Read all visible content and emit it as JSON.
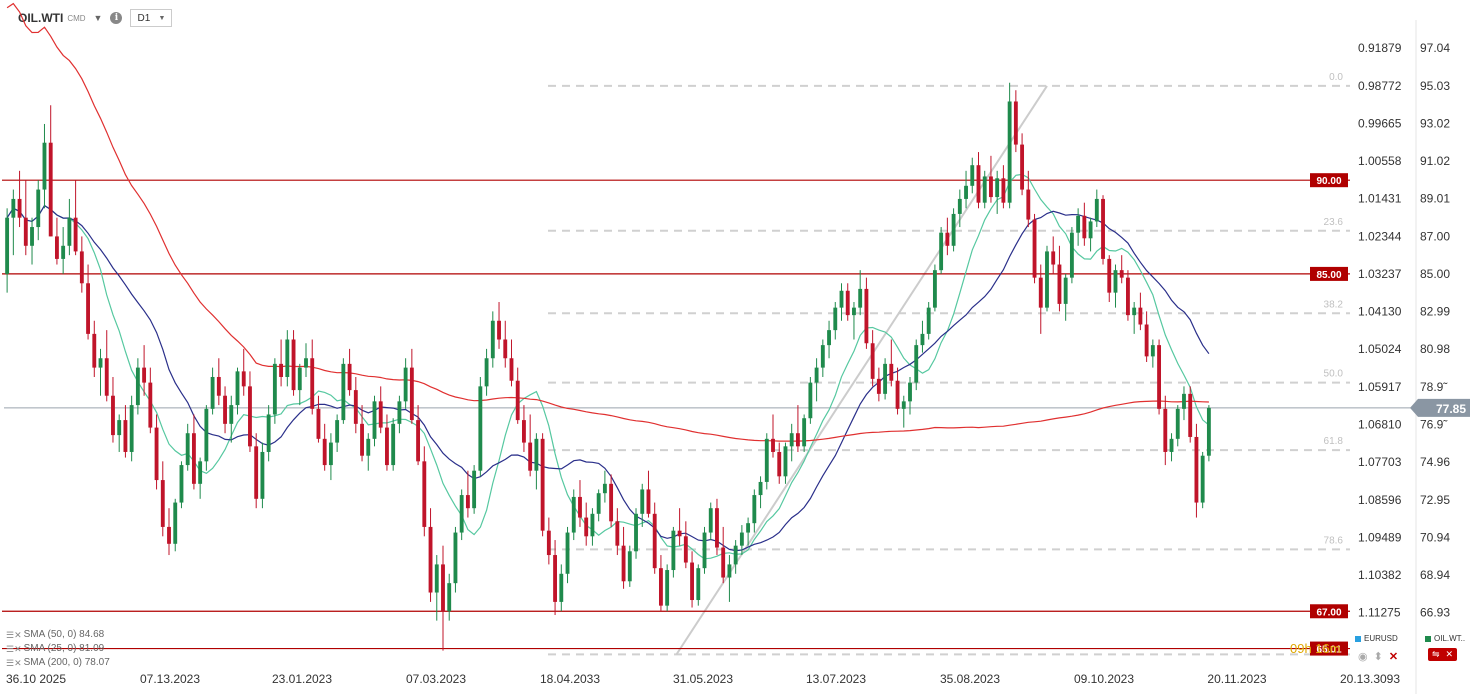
{
  "header": {
    "symbol": "OIL.WTI",
    "symbol_suffix": "CMD",
    "timeframe": "D1",
    "info_icon": "info-icon"
  },
  "chart_data": {
    "type": "candlestick",
    "instrument": "OIL.WTI",
    "timeframe": "D1",
    "x_tick_labels": [
      "36.10 2025",
      "07.13.2023",
      "23.01.2023",
      "07.03.2023",
      "18.04.2033",
      "31.05.2023",
      "13.07.2023",
      "35.08.2023",
      "09.10.2023",
      "20.11.2023",
      "20.13.3093"
    ],
    "ylim": [
      64.4,
      97.8
    ],
    "y_ticks": [
      {
        "value": 97.04,
        "label": "97.04"
      },
      {
        "value": 95.03,
        "label": "95.03"
      },
      {
        "value": 93.02,
        "label": "93.02"
      },
      {
        "value": 91.02,
        "label": "91.02"
      },
      {
        "value": 89.01,
        "label": "89.01"
      },
      {
        "value": 87.0,
        "label": "87.00"
      },
      {
        "value": 85.0,
        "label": "85.00"
      },
      {
        "value": 82.99,
        "label": "82.99"
      },
      {
        "value": 80.98,
        "label": "80.98"
      },
      {
        "value": 78.97,
        "label": "78.9̃"
      },
      {
        "value": 76.97,
        "label": "76.9̃"
      },
      {
        "value": 74.96,
        "label": "74.96"
      },
      {
        "value": 72.95,
        "label": "72.95"
      },
      {
        "value": 70.94,
        "label": "70.94"
      },
      {
        "value": 68.94,
        "label": "68.94"
      },
      {
        "value": 66.93,
        "label": "66.93"
      }
    ],
    "secondary_y_ticks": [
      {
        "value": 97.04,
        "label": "0.91879"
      },
      {
        "value": 95.03,
        "label": "0.98772"
      },
      {
        "value": 93.02,
        "label": "0.99665"
      },
      {
        "value": 91.02,
        "label": "1.00558"
      },
      {
        "value": 89.01,
        "label": "1.01431"
      },
      {
        "value": 87.0,
        "label": "1.02344"
      },
      {
        "value": 85.0,
        "label": "1.03237"
      },
      {
        "value": 82.99,
        "label": "1.04130"
      },
      {
        "value": 80.98,
        "label": "1.05024"
      },
      {
        "value": 78.97,
        "label": "1.05917"
      },
      {
        "value": 76.97,
        "label": "1.06810"
      },
      {
        "value": 74.96,
        "label": "1.07703"
      },
      {
        "value": 72.95,
        "label": "1.08596"
      },
      {
        "value": 70.94,
        "label": "1.09489"
      },
      {
        "value": 68.94,
        "label": "1.10382"
      },
      {
        "value": 66.93,
        "label": "1.11275"
      }
    ],
    "current_price": {
      "value": 77.85,
      "label": "77.85"
    },
    "horizontal_levels": [
      {
        "value": 90.0,
        "label": "90.00"
      },
      {
        "value": 85.0,
        "label": "85.00"
      },
      {
        "value": 67.0,
        "label": "67.00"
      },
      {
        "value": 65.01,
        "label": "65.01"
      }
    ],
    "fibonacci": [
      {
        "level": "0.0",
        "price": 95.03
      },
      {
        "level": "23.6",
        "price": 87.3
      },
      {
        "level": "38.2",
        "price": 82.9
      },
      {
        "level": "50.0",
        "price": 79.2
      },
      {
        "level": "61.8",
        "price": 75.6
      },
      {
        "level": "78.6",
        "price": 70.3
      },
      {
        "level": "",
        "price": 64.7
      }
    ],
    "ohlc": [
      [
        85,
        88.5,
        84,
        88
      ],
      [
        88,
        89.5,
        86,
        89
      ],
      [
        89,
        90.5,
        87.5,
        88
      ],
      [
        88,
        90,
        86,
        86.5
      ],
      [
        86.5,
        88,
        85.5,
        87.5
      ],
      [
        87.5,
        90,
        86.8,
        89.5
      ],
      [
        89.5,
        93,
        88.5,
        92
      ],
      [
        92,
        94,
        87,
        87
      ],
      [
        87,
        88,
        85.5,
        85.8
      ],
      [
        85.8,
        87.5,
        85,
        86.5
      ],
      [
        86.5,
        89,
        86,
        88
      ],
      [
        88,
        90,
        86,
        86.2
      ],
      [
        86.2,
        87,
        84,
        84.5
      ],
      [
        84.5,
        85.5,
        81.5,
        81.8
      ],
      [
        81.8,
        82.5,
        79.5,
        80
      ],
      [
        80,
        81,
        78.5,
        80.5
      ],
      [
        80.5,
        82,
        78.2,
        78.5
      ],
      [
        78.5,
        79.5,
        76,
        76.4
      ],
      [
        76.4,
        77.5,
        75.5,
        77.2
      ],
      [
        77.2,
        78,
        75.2,
        75.5
      ],
      [
        75.5,
        78.5,
        75,
        78
      ],
      [
        78,
        80.5,
        77.5,
        80
      ],
      [
        80,
        81.2,
        78.5,
        79.2
      ],
      [
        79.2,
        80,
        76.5,
        76.8
      ],
      [
        76.8,
        77.5,
        73.5,
        74
      ],
      [
        74,
        75,
        71,
        71.5
      ],
      [
        71.5,
        72.5,
        70,
        70.6
      ],
      [
        70.6,
        73,
        70.2,
        72.8
      ],
      [
        72.8,
        75,
        72.5,
        74.8
      ],
      [
        74.8,
        77,
        74.5,
        76.5
      ],
      [
        76.5,
        77.5,
        73.5,
        73.8
      ],
      [
        73.8,
        75.2,
        73,
        75
      ],
      [
        75,
        78,
        74.5,
        77.8
      ],
      [
        77.8,
        80,
        77.5,
        79.5
      ],
      [
        79.5,
        80.5,
        78,
        78.5
      ],
      [
        78.5,
        79,
        76.5,
        77
      ],
      [
        77,
        78.5,
        76,
        78
      ],
      [
        78,
        80,
        77.5,
        79.8
      ],
      [
        79.8,
        81,
        78.5,
        79
      ],
      [
        79,
        79.8,
        75.5,
        75.8
      ],
      [
        75.8,
        76.5,
        72.5,
        73
      ],
      [
        73,
        76,
        72.5,
        75.5
      ],
      [
        75.5,
        78,
        75,
        77.5
      ],
      [
        77.5,
        80.5,
        77,
        80.2
      ],
      [
        80.2,
        81.5,
        79,
        79.5
      ],
      [
        79.5,
        82,
        79,
        81.5
      ],
      [
        81.5,
        82,
        78.5,
        78.8
      ],
      [
        78.8,
        80.2,
        78,
        80
      ],
      [
        80,
        81.3,
        79.5,
        80.5
      ],
      [
        80.5,
        81.5,
        77.5,
        77.8
      ],
      [
        77.8,
        78.5,
        76,
        76.2
      ],
      [
        76.2,
        77,
        74.5,
        74.8
      ],
      [
        74.8,
        76.5,
        74,
        76
      ],
      [
        76,
        77.5,
        75.5,
        77.2
      ],
      [
        77.2,
        80.5,
        77,
        80.2
      ],
      [
        80.2,
        81,
        78.5,
        78.8
      ],
      [
        78.8,
        79.5,
        76.5,
        77
      ],
      [
        77,
        78,
        75,
        75.3
      ],
      [
        75.3,
        76.5,
        74.5,
        76.2
      ],
      [
        76.2,
        78.5,
        75.8,
        78.2
      ],
      [
        78.2,
        79,
        76.5,
        76.8
      ],
      [
        76.8,
        77.5,
        74.5,
        74.8
      ],
      [
        74.8,
        77.3,
        74.5,
        77
      ],
      [
        77,
        78.5,
        76.5,
        78.2
      ],
      [
        78.2,
        80.5,
        77.8,
        80
      ],
      [
        80,
        81,
        77,
        77.2
      ],
      [
        77.2,
        78,
        74.8,
        75
      ],
      [
        75,
        75.8,
        71,
        71.5
      ],
      [
        71.5,
        72.5,
        67.5,
        68
      ],
      [
        68,
        70,
        66.5,
        69.5
      ],
      [
        69.5,
        70.5,
        64.9,
        67
      ],
      [
        67,
        69,
        66.5,
        68.5
      ],
      [
        68.5,
        71.5,
        68,
        71.2
      ],
      [
        71.2,
        73.5,
        70.8,
        73.2
      ],
      [
        73.2,
        74.5,
        72,
        72.5
      ],
      [
        72.5,
        74.8,
        72.2,
        74.5
      ],
      [
        74.5,
        79.5,
        74.2,
        79
      ],
      [
        79,
        81,
        78.5,
        80.5
      ],
      [
        80.5,
        83,
        80,
        82.5
      ],
      [
        82.5,
        83.5,
        81,
        81.5
      ],
      [
        81.5,
        82.5,
        80,
        80.5
      ],
      [
        80.5,
        81.5,
        79,
        79.3
      ],
      [
        79.3,
        80,
        77,
        77.2
      ],
      [
        77.2,
        78,
        75.5,
        76
      ],
      [
        76,
        77.5,
        74.2,
        74.5
      ],
      [
        74.5,
        76.5,
        73.5,
        76.2
      ],
      [
        76.2,
        76.5,
        71,
        71.3
      ],
      [
        71.3,
        72,
        69.5,
        70
      ],
      [
        70,
        70.8,
        66.8,
        67.5
      ],
      [
        67.5,
        69.5,
        67,
        69
      ],
      [
        69,
        71.5,
        68.5,
        71.2
      ],
      [
        71.2,
        73.5,
        70.8,
        73.1
      ],
      [
        73.1,
        74,
        71.5,
        72
      ],
      [
        72,
        72.8,
        70.5,
        71
      ],
      [
        71,
        72.5,
        70.5,
        72.2
      ],
      [
        72.2,
        73.5,
        71.8,
        73.3
      ],
      [
        73.3,
        74.5,
        72.8,
        73.8
      ],
      [
        73.8,
        74.3,
        71.5,
        71.8
      ],
      [
        71.8,
        72.5,
        70,
        70.5
      ],
      [
        70.5,
        71.5,
        68.2,
        68.6
      ],
      [
        68.6,
        70.5,
        68.3,
        70.2
      ],
      [
        70.2,
        72.5,
        69.8,
        72.2
      ],
      [
        72.2,
        73.8,
        71.5,
        73.5
      ],
      [
        73.5,
        74.5,
        72,
        72.2
      ],
      [
        72.2,
        72.8,
        69,
        69.3
      ],
      [
        69.3,
        70,
        67,
        67.3
      ],
      [
        67.3,
        69.5,
        67,
        69.2
      ],
      [
        69.2,
        71.5,
        68.8,
        71.3
      ],
      [
        71.3,
        72.5,
        70.5,
        71
      ],
      [
        71,
        71.8,
        69.3,
        69.6
      ],
      [
        69.6,
        70.2,
        67.2,
        67.6
      ],
      [
        67.6,
        69.5,
        67.3,
        69.3
      ],
      [
        69.3,
        71.5,
        69,
        71.2
      ],
      [
        71.2,
        72.8,
        70.8,
        72.5
      ],
      [
        72.5,
        73,
        70,
        70.4
      ],
      [
        70.4,
        71.5,
        68.5,
        68.8
      ],
      [
        68.8,
        70,
        67.5,
        69.5
      ],
      [
        69.5,
        70.8,
        69,
        70.5
      ],
      [
        70.5,
        71.6,
        70,
        71.2
      ],
      [
        71.2,
        72,
        70.5,
        71.7
      ],
      [
        71.7,
        73.5,
        71.2,
        73.2
      ],
      [
        73.2,
        74.2,
        72.5,
        73.9
      ],
      [
        73.9,
        76.5,
        73.5,
        76.2
      ],
      [
        76.2,
        77.5,
        75.2,
        75.5
      ],
      [
        75.5,
        76,
        73.8,
        74.2
      ],
      [
        74.2,
        76,
        73.8,
        75.8
      ],
      [
        75.8,
        77,
        75,
        76.5
      ],
      [
        76.5,
        78,
        75.5,
        75.8
      ],
      [
        75.8,
        77.5,
        75.5,
        77.3
      ],
      [
        77.3,
        79.5,
        77,
        79.2
      ],
      [
        79.2,
        80.5,
        78.2,
        80
      ],
      [
        80,
        81.5,
        79.5,
        81.2
      ],
      [
        81.2,
        82.5,
        80.5,
        82
      ],
      [
        82,
        83.5,
        81.5,
        83.2
      ],
      [
        83.2,
        84.5,
        82.5,
        84.1
      ],
      [
        84.1,
        84.5,
        82.5,
        82.8
      ],
      [
        82.8,
        83.5,
        81.5,
        83.2
      ],
      [
        83.2,
        85.2,
        82.8,
        84.2
      ],
      [
        84.2,
        84.8,
        81,
        81.3
      ],
      [
        81.3,
        82,
        79,
        79.4
      ],
      [
        79.4,
        80,
        78.2,
        78.6
      ],
      [
        78.6,
        80.5,
        78.3,
        80.2
      ],
      [
        80.2,
        81.5,
        79,
        79.3
      ],
      [
        79.3,
        80,
        77.5,
        77.8
      ],
      [
        77.8,
        78.5,
        76.8,
        78.2
      ],
      [
        78.2,
        79.5,
        77.5,
        79.2
      ],
      [
        79.2,
        81.5,
        78.8,
        81.2
      ],
      [
        81.2,
        82.5,
        80.8,
        81.8
      ],
      [
        81.8,
        83.5,
        81.5,
        83.2
      ],
      [
        83.2,
        85.5,
        83,
        85.2
      ],
      [
        85.2,
        87.5,
        85,
        87.2
      ],
      [
        87.2,
        88,
        86,
        86.5
      ],
      [
        86.5,
        88.5,
        86.2,
        88.2
      ],
      [
        88.2,
        89.5,
        87.5,
        89
      ],
      [
        89,
        90.5,
        88.5,
        89.7
      ],
      [
        89.7,
        91.2,
        89.3,
        90.8
      ],
      [
        90.8,
        91.5,
        88.5,
        88.8
      ],
      [
        88.8,
        90.5,
        88.5,
        90.2
      ],
      [
        90.2,
        91.3,
        88.8,
        89.1
      ],
      [
        89.1,
        90.5,
        88.2,
        90.1
      ],
      [
        90.1,
        90.8,
        88.5,
        88.8
      ],
      [
        88.8,
        95.2,
        88.5,
        94.2
      ],
      [
        94.2,
        94.8,
        91.5,
        91.9
      ],
      [
        91.9,
        92.5,
        89.2,
        89.5
      ],
      [
        89.5,
        90.5,
        87.5,
        87.9
      ],
      [
        87.9,
        88.2,
        84.5,
        84.8
      ],
      [
        84.8,
        85.5,
        81.8,
        83.2
      ],
      [
        83.2,
        86.5,
        83,
        86.2
      ],
      [
        86.2,
        87,
        85,
        85.5
      ],
      [
        85.5,
        86.5,
        83,
        83.4
      ],
      [
        83.4,
        85,
        82.5,
        84.8
      ],
      [
        84.8,
        87.5,
        84.5,
        87.2
      ],
      [
        87.2,
        88.5,
        86.5,
        88.1
      ],
      [
        88.1,
        88.8,
        86.5,
        86.9
      ],
      [
        86.9,
        88,
        86.2,
        87.8
      ],
      [
        87.8,
        89.5,
        87.5,
        89
      ],
      [
        89,
        89.2,
        85.5,
        85.8
      ],
      [
        85.8,
        86,
        83.5,
        84
      ],
      [
        84,
        85.5,
        83.2,
        85.2
      ],
      [
        85.2,
        86,
        84.5,
        84.8
      ],
      [
        84.8,
        85.2,
        82.5,
        82.8
      ],
      [
        82.8,
        83.5,
        81.8,
        83.2
      ],
      [
        83.2,
        84,
        82,
        82.3
      ],
      [
        82.3,
        83,
        80.3,
        80.6
      ],
      [
        80.6,
        81.5,
        80,
        81.2
      ],
      [
        81.2,
        81.5,
        77.5,
        77.8
      ],
      [
        77.8,
        78.5,
        74.8,
        75.5
      ],
      [
        75.5,
        76.5,
        75,
        76.2
      ],
      [
        76.2,
        78,
        75.8,
        77.8
      ],
      [
        77.8,
        79,
        77.2,
        78.6
      ],
      [
        78.6,
        79,
        76,
        76.3
      ],
      [
        76.3,
        77,
        72,
        72.8
      ],
      [
        72.8,
        75.5,
        72.5,
        75.3
      ],
      [
        75.3,
        78,
        75,
        77.85
      ]
    ],
    "series": [
      {
        "name": "SMA (50, 0) 84.68",
        "color": "#e03030"
      },
      {
        "name": "SMA (25, 0) 81.09",
        "color": "#2a2f8a"
      },
      {
        "name": "SMA (200, 0) 78.07",
        "color": "#56c8a0"
      }
    ],
    "compare": [
      "EURUSD",
      "OIL.WT.."
    ]
  },
  "legend": {
    "sma1": "SMA (50, 0) 84.68",
    "sma2": "SMA (25, 0) 81.09",
    "sma3": "SMA (200, 0) 78.07"
  },
  "compare": {
    "eurusd": "EURUSD",
    "oil": "OIL.WT.."
  },
  "footer": {
    "timer": "09h 16m"
  },
  "colors": {
    "up": "#1f8a4c",
    "down": "#c0142a",
    "level": "#b00000",
    "sma_fast": "#56c8a0",
    "sma_mid": "#2a2f8a",
    "sma_slow": "#e03030"
  },
  "icons": [
    "info-icon",
    "chevron-down-icon",
    "settings-icon",
    "visibility-icon",
    "close-icon"
  ]
}
